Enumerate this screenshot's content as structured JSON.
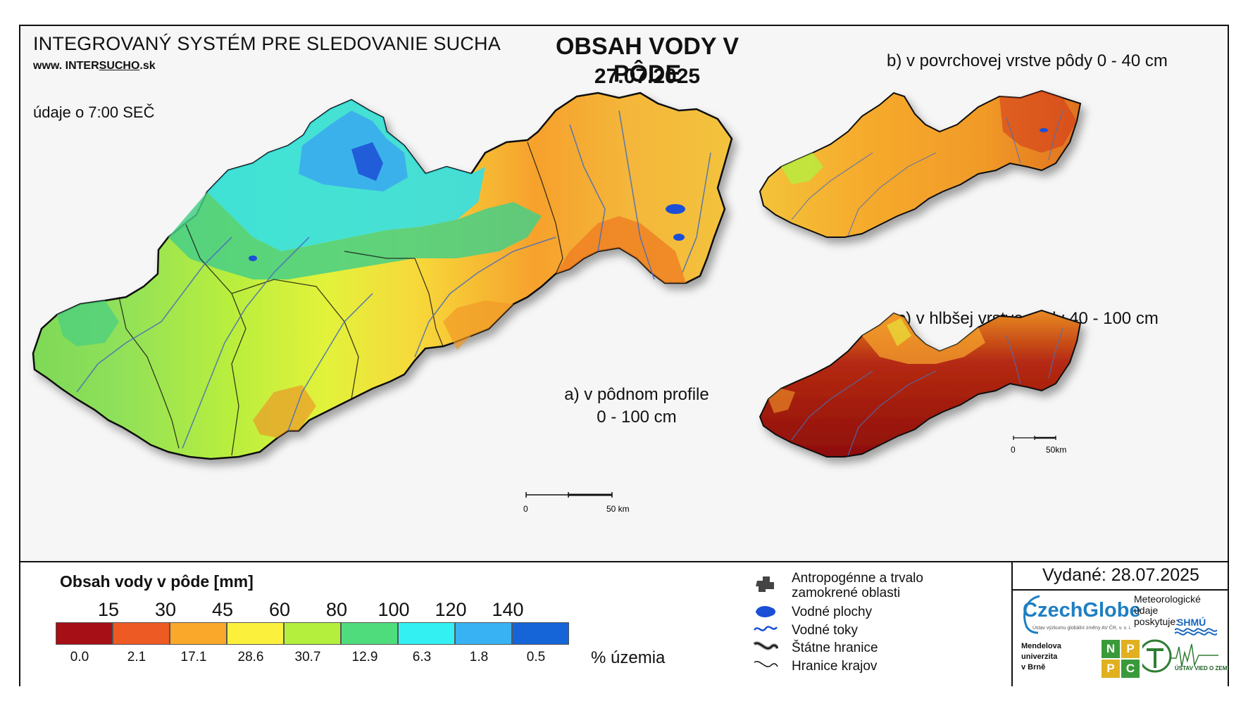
{
  "header": {
    "system_title": "INTEGROVANÝ SYSTÉM PRE SLEDOVANIE SUCHA",
    "website_prefix": "www.",
    "website_a": "INTER",
    "website_b": "SUCHO",
    "website_c": ".sk",
    "data_time": "údaje o 7:00 SEČ",
    "main_title": "OBSAH VODY V PÔDE",
    "main_date": "27.07.2025"
  },
  "maps": {
    "a_line1": "a) v pôdnom profile",
    "a_line2": "0 - 100 cm",
    "b_label": "b) v povrchovej vrstve pôdy 0 - 40 cm",
    "c_label": "c) v hlbšej vrstve pôdy 40 - 100 cm",
    "scale_main_start": "0",
    "scale_main_end": "50 km",
    "scale_small_start": "0",
    "scale_small_end": "50km"
  },
  "legend": {
    "title": "Obsah vody v pôde  [mm]",
    "thresholds": [
      "15",
      "30",
      "45",
      "60",
      "80",
      "100",
      "120",
      "140"
    ],
    "classes": [
      {
        "color": "#a50f15",
        "percent": "0.0"
      },
      {
        "color": "#ee5a24",
        "percent": "2.1"
      },
      {
        "color": "#f9a82a",
        "percent": "17.1"
      },
      {
        "color": "#fbf13d",
        "percent": "28.6"
      },
      {
        "color": "#b5ef3e",
        "percent": "30.7"
      },
      {
        "color": "#4fdc7d",
        "percent": "12.9"
      },
      {
        "color": "#33f1f2",
        "percent": "6.3"
      },
      {
        "color": "#38b2f3",
        "percent": "1.8"
      },
      {
        "color": "#1565d8",
        "percent": "0.5"
      }
    ],
    "percent_unit": "% územia"
  },
  "symbols": {
    "anthropogenic_line1": "Antropogénne a trvalo",
    "anthropogenic_line2": "zamokrené oblasti",
    "water_bodies": "Vodné plochy",
    "water_streams": "Vodné toky",
    "state_border": "Štátne hranice",
    "region_border": "Hranice krajov"
  },
  "issued": "Vydané: 28.07.2025",
  "logos": {
    "czechglobe": "CzechGlobe",
    "czechglobe_sub": "Ústav výzkumu globální změny AV ČR, v. v. i.",
    "meteo_line1": "Meteorologické",
    "meteo_line2": "údaje",
    "meteo_line3": "poskytuje:",
    "shmu": "SHMÚ",
    "mendel_line1": "Mendelova",
    "mendel_line2": "univerzita",
    "mendel_line3": "v Brně",
    "nppc": [
      "N",
      "P",
      "P",
      "C"
    ],
    "uvz": "ÚSTAV VIED O ZEMI"
  },
  "colors": {
    "water": "#1a4fd6",
    "river": "#4a6fb8",
    "border": "#111111"
  }
}
